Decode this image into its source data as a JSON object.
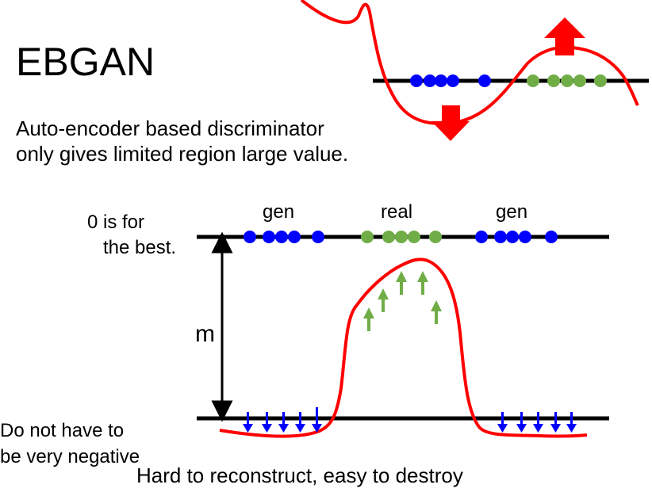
{
  "title": "EBGAN",
  "description": {
    "line1": "Auto-encoder based discriminator",
    "line2": "only gives limited region large value."
  },
  "top_label": {
    "line1": "0 is for",
    "line2": "the best."
  },
  "group_labels": {
    "gen_left": "gen",
    "real": "real",
    "gen_right": "gen"
  },
  "margin_label": "m",
  "bottom_label": {
    "line1": "Do not have to",
    "line2": "be very negative"
  },
  "caption": "Hard to reconstruct, easy to destroy",
  "colors": {
    "curve": "#ff0000",
    "generated_point": "#0000ff",
    "real_point": "#70ad47",
    "push_up_arrow": "#70ad47",
    "push_down_arrow": "#0000ff",
    "big_arrow": "#ff0000",
    "line": "#000000"
  }
}
